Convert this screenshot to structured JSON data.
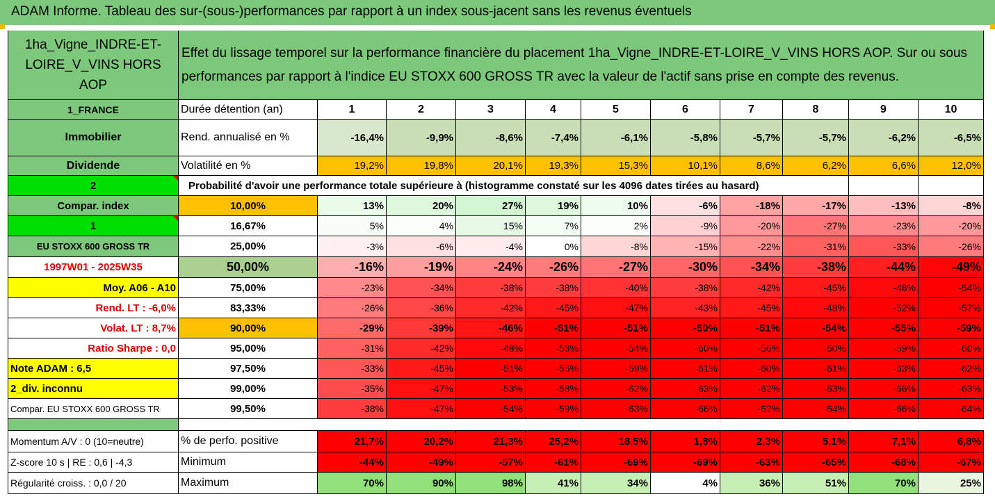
{
  "title": "ADAM Informe. Tableau des sur-(sous-)performances par rapport à un index sous-jacent sans les revenus éventuels",
  "asset_name": "1ha_Vigne_INDRE-ET-LOIRE_V_VINS HORS AOP",
  "description": "Effet du lissage temporel sur la performance financière du placement 1ha_Vigne_INDRE-ET-LOIRE_V_VINS HORS AOP. Sur ou sous performances par rapport à l'indice EU STOXX 600 GROSS TR avec la valeur de l'actif sans prise en compte des revenus.",
  "left_labels": [
    "1_FRANCE",
    "Immobilier",
    "Dividende",
    "2",
    "Compar. index",
    "1",
    "EU STOXX 600 GROSS TR",
    "1997W01 - 2025W35",
    "Moy. A06 - A10",
    "Rend. LT :   -6,0%",
    "Volat. LT :   8,7%",
    "Ratio Sharpe :   0,0",
    "Note ADAM : 6,5",
    "2_div. inconnu",
    "Compar. EU STOXX 600 GROSS TR"
  ],
  "horizon_label": "Durée détention (an)",
  "years": [
    "1",
    "2",
    "3",
    "4",
    "5",
    "6",
    "7",
    "8",
    "9",
    "10"
  ],
  "rend_label": "Rend. annualisé en %",
  "rend_values": [
    "-16,4%",
    "-9,9%",
    "-8,6%",
    "-7,4%",
    "-6,1%",
    "-5,8%",
    "-5,7%",
    "-5,7%",
    "-6,2%",
    "-6,5%"
  ],
  "vol_label": "Volatilité en %",
  "vol_values": [
    "19,2%",
    "19,8%",
    "20,1%",
    "19,3%",
    "15,3%",
    "10,1%",
    "8,6%",
    "6,2%",
    "6,6%",
    "12,0%"
  ],
  "prob_header": "Probabilité d'avoir une performance totale supérieure à (histogramme constaté sur les 4096 dates tirées au hasard)",
  "percentiles": [
    "10,00%",
    "16,67%",
    "25,00%",
    "50,00%",
    "75,00%",
    "83,33%",
    "90,00%",
    "95,00%",
    "97,50%",
    "99,00%",
    "99,50%"
  ],
  "grid": [
    [
      "13%",
      "20%",
      "27%",
      "19%",
      "10%",
      "-6%",
      "-18%",
      "-17%",
      "-13%",
      "-8%"
    ],
    [
      "5%",
      "4%",
      "15%",
      "7%",
      "2%",
      "-9%",
      "-20%",
      "-27%",
      "-23%",
      "-20%"
    ],
    [
      "-3%",
      "-6%",
      "-4%",
      "0%",
      "-8%",
      "-15%",
      "-22%",
      "-31%",
      "-33%",
      "-26%"
    ],
    [
      "-16%",
      "-19%",
      "-24%",
      "-26%",
      "-27%",
      "-30%",
      "-34%",
      "-38%",
      "-44%",
      "-49%"
    ],
    [
      "-23%",
      "-34%",
      "-38%",
      "-38%",
      "-40%",
      "-38%",
      "-42%",
      "-45%",
      "-48%",
      "-54%"
    ],
    [
      "-26%",
      "-36%",
      "-42%",
      "-45%",
      "-47%",
      "-43%",
      "-45%",
      "-48%",
      "-52%",
      "-57%"
    ],
    [
      "-29%",
      "-39%",
      "-46%",
      "-51%",
      "-51%",
      "-50%",
      "-51%",
      "-54%",
      "-55%",
      "-59%"
    ],
    [
      "-31%",
      "-42%",
      "-48%",
      "-53%",
      "-54%",
      "-60%",
      "-56%",
      "-60%",
      "-59%",
      "-60%"
    ],
    [
      "-33%",
      "-45%",
      "-51%",
      "-55%",
      "-59%",
      "-61%",
      "-60%",
      "-61%",
      "-63%",
      "-62%"
    ],
    [
      "-35%",
      "-47%",
      "-53%",
      "-58%",
      "-62%",
      "-63%",
      "-62%",
      "-63%",
      "-66%",
      "-63%"
    ],
    [
      "-38%",
      "-47%",
      "-54%",
      "-59%",
      "-63%",
      "-66%",
      "-62%",
      "-64%",
      "-66%",
      "-64%"
    ]
  ],
  "bottom": [
    {
      "left": "Momentum A/V : 0 (10=neutre)",
      "label": "% de perfo. positive",
      "values": [
        "21,7%",
        "20,2%",
        "21,3%",
        "25,2%",
        "18,5%",
        "1,8%",
        "2,3%",
        "5,1%",
        "7,1%",
        "6,8%"
      ]
    },
    {
      "left": "Z-score 10 s | RE : 0,6 | -4,3",
      "label": "Minimum",
      "values": [
        "-44%",
        "-49%",
        "-57%",
        "-61%",
        "-69%",
        "-69%",
        "-63%",
        "-65%",
        "-68%",
        "-67%"
      ]
    },
    {
      "left": "Régularité croiss. : 0,0 / 20",
      "label": "Maximum",
      "values": [
        "70%",
        "90%",
        "98%",
        "41%",
        "34%",
        "4%",
        "36%",
        "51%",
        "70%",
        "25%"
      ]
    }
  ],
  "colors": {
    "green_header": "#7dc97c",
    "bright_green": "#00e000",
    "yellow": "#ffff00",
    "orange": "#ffc000",
    "red": "#ff0000",
    "label_red": "#e00000"
  }
}
